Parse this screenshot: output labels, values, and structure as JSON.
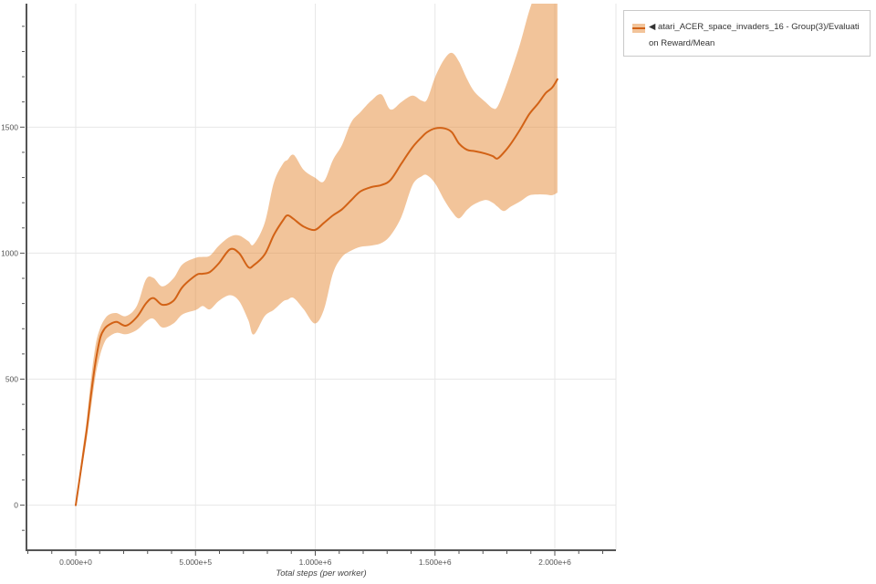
{
  "legend": {
    "label": "◀ atari_ACER_space_invaders_16 - Group(3)/Evaluation Reward/Mean"
  },
  "chart_data": {
    "type": "line",
    "title": "",
    "xlabel": "Total steps (per worker)",
    "ylabel": "",
    "grid": true,
    "legend_position": "top-right",
    "x_tick_labels": [
      "0.000e+0",
      "5.000e+5",
      "1.000e+6",
      "1.500e+6",
      "2.000e+6"
    ],
    "x_tick_values": [
      0,
      500000,
      1000000,
      1500000,
      2000000
    ],
    "y_tick_labels": [
      "0",
      "500",
      "1000",
      "1500"
    ],
    "y_tick_values": [
      0,
      500,
      1000,
      1500
    ],
    "x_minor_step": 100000,
    "y_minor_step": 100,
    "xlim": [
      -205714,
      2255238
    ],
    "ylim": [
      -179,
      1990
    ],
    "colors": {
      "line": "#d26216",
      "band": "#e58935",
      "band_opacity": 0.5,
      "grid": "#e7e7e7",
      "axis": "#555555",
      "tick_label": "#555555",
      "axis_title": "#444444",
      "legend_border": "#c9c9c9",
      "background": "#ffffff"
    },
    "series": [
      {
        "name": "atari_ACER_space_invaders_16 - Group(3)/Evaluation Reward/Mean",
        "x": [
          0,
          27000,
          46000,
          65000,
          84000,
          103000,
          122000,
          141000,
          171000,
          210000,
          255000,
          293000,
          324000,
          362000,
          408000,
          446000,
          503000,
          530000,
          560000,
          598000,
          644000,
          682000,
          720000,
          743000,
          789000,
          827000,
          865000,
          884000,
          910000,
          952000,
          998000,
          1036000,
          1074000,
          1112000,
          1150000,
          1189000,
          1234000,
          1276000,
          1314000,
          1360000,
          1406000,
          1444000,
          1467000,
          1501000,
          1539000,
          1570000,
          1600000,
          1634000,
          1665000,
          1710000,
          1741000,
          1760000,
          1787000,
          1817000,
          1855000,
          1893000,
          1931000,
          1962000,
          1989000,
          2011000
        ],
        "mean": [
          0,
          175,
          300,
          448,
          575,
          666,
          702,
          717,
          727,
          712,
          746,
          800,
          822,
          795,
          811,
          866,
          913,
          918,
          925,
          960,
          1015,
          1000,
          945,
          952,
          995,
          1072,
          1130,
          1150,
          1135,
          1105,
          1092,
          1120,
          1150,
          1174,
          1210,
          1245,
          1262,
          1270,
          1290,
          1356,
          1420,
          1460,
          1480,
          1495,
          1495,
          1480,
          1435,
          1410,
          1405,
          1395,
          1385,
          1375,
          1399,
          1435,
          1490,
          1551,
          1595,
          1635,
          1657,
          1690
        ],
        "lo": [
          0,
          150,
          265,
          395,
          520,
          600,
          650,
          670,
          684,
          678,
          695,
          728,
          740,
          705,
          721,
          757,
          775,
          790,
          777,
          811,
          833,
          810,
          735,
          677,
          750,
          775,
          808,
          815,
          822,
          777,
          721,
          775,
          920,
          985,
          1010,
          1025,
          1030,
          1040,
          1070,
          1145,
          1270,
          1305,
          1309,
          1276,
          1210,
          1165,
          1138,
          1172,
          1195,
          1211,
          1200,
          1185,
          1167,
          1185,
          1205,
          1229,
          1233,
          1232,
          1230,
          1240
        ],
        "hi": [
          0,
          205,
          340,
          510,
          640,
          705,
          740,
          757,
          762,
          750,
          790,
          895,
          902,
          868,
          900,
          956,
          982,
          985,
          990,
          1030,
          1065,
          1070,
          1048,
          1035,
          1120,
          1280,
          1355,
          1370,
          1390,
          1330,
          1300,
          1285,
          1370,
          1430,
          1519,
          1560,
          1605,
          1630,
          1570,
          1600,
          1625,
          1605,
          1610,
          1700,
          1770,
          1795,
          1760,
          1690,
          1640,
          1600,
          1575,
          1580,
          1640,
          1720,
          1830,
          1960,
          2060,
          2100,
          2110,
          2120
        ]
      }
    ]
  }
}
